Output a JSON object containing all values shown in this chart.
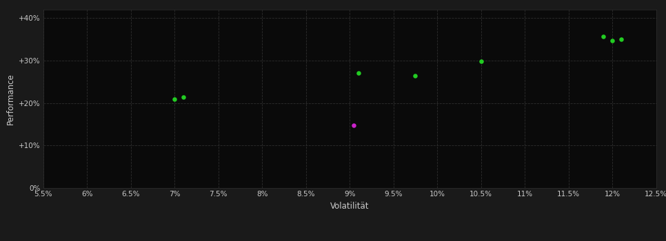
{
  "background_color": "#1a1a1a",
  "plot_bg_color": "#0a0a0a",
  "grid_color": "#2e2e2e",
  "grid_style": "--",
  "xlabel": "Volatilität",
  "ylabel": "Performance",
  "xlabel_color": "#cccccc",
  "ylabel_color": "#cccccc",
  "tick_color": "#cccccc",
  "xlim": [
    0.055,
    0.125
  ],
  "ylim": [
    0.0,
    0.42
  ],
  "xticks": [
    0.055,
    0.06,
    0.065,
    0.07,
    0.075,
    0.08,
    0.085,
    0.09,
    0.095,
    0.1,
    0.105,
    0.11,
    0.115,
    0.12,
    0.125
  ],
  "yticks": [
    0.0,
    0.1,
    0.2,
    0.3,
    0.4
  ],
  "ytick_labels": [
    "0%",
    "+10%",
    "+20%",
    "+30%",
    "+40%"
  ],
  "xtick_labels": [
    "5.5%",
    "6%",
    "6.5%",
    "7%",
    "7.5%",
    "8%",
    "8.5%",
    "9%",
    "9.5%",
    "10%",
    "10.5%",
    "11%",
    "11.5%",
    "12%",
    "12.5%"
  ],
  "green_points": [
    [
      0.07,
      0.21
    ],
    [
      0.071,
      0.214
    ],
    [
      0.091,
      0.271
    ],
    [
      0.0975,
      0.264
    ],
    [
      0.105,
      0.298
    ],
    [
      0.119,
      0.356
    ],
    [
      0.12,
      0.347
    ],
    [
      0.121,
      0.35
    ]
  ],
  "magenta_points": [
    [
      0.0905,
      0.147
    ]
  ],
  "point_size": 22,
  "green_color": "#22cc22",
  "magenta_color": "#cc22cc"
}
